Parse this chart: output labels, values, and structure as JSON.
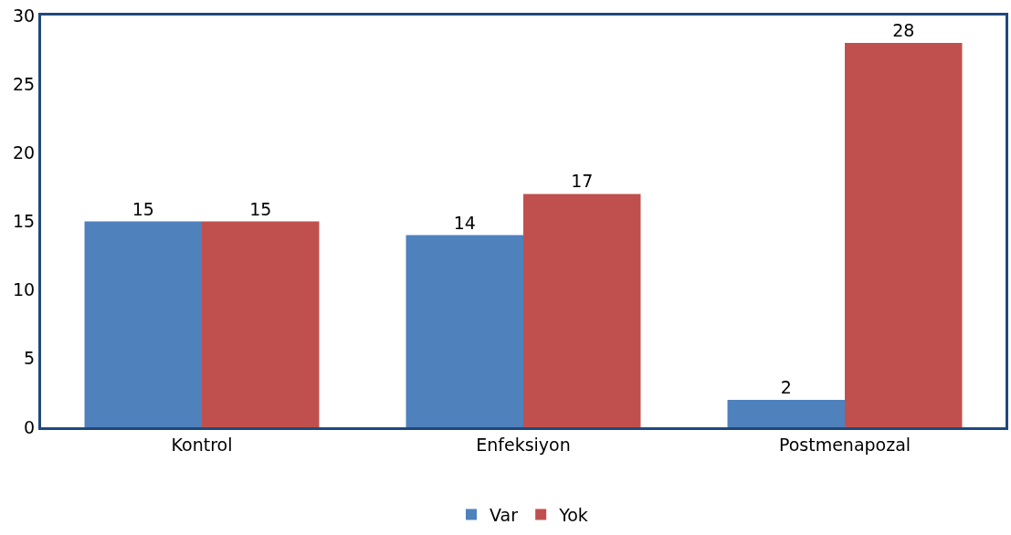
{
  "chart_data": {
    "type": "bar",
    "categories": [
      "Kontrol",
      "Enfeksiyon",
      "Postmenapozal"
    ],
    "series": [
      {
        "name": "Var",
        "color": "#4f81bd",
        "values": [
          15,
          14,
          2
        ]
      },
      {
        "name": "Yok",
        "color": "#c0504d",
        "values": [
          15,
          17,
          28
        ]
      }
    ],
    "ylim": [
      0,
      30
    ],
    "yticks": [
      0,
      5,
      10,
      15,
      20,
      25,
      30
    ],
    "legend": "bottom",
    "data_labels": true
  }
}
